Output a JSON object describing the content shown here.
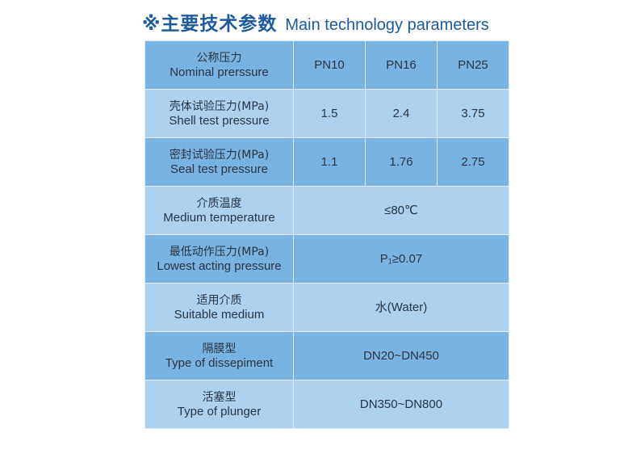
{
  "title": {
    "cn": "※主要技术参数",
    "en": "Main technology parameters"
  },
  "colors": {
    "title": "#1d5b9c",
    "row_dark": "#77b3e3",
    "row_light": "#aed1f0",
    "text": "#2b3440"
  },
  "rows": [
    {
      "cn": "公称压力",
      "en": "Nominal prerssure",
      "values": [
        "PN10",
        "PN16",
        "PN25"
      ]
    },
    {
      "cn": "壳体试验压力(MPa)",
      "en": "Shell test pressure",
      "values": [
        "1.5",
        "2.4",
        "3.75"
      ]
    },
    {
      "cn": "密封试验压力(MPa)",
      "en": "Seal test pressure",
      "values": [
        "1.1",
        "1.76",
        "2.75"
      ]
    },
    {
      "cn": "介质温度",
      "en": "Medium temperature",
      "value": "≤80℃"
    },
    {
      "cn": "最低动作压力(MPa)",
      "en": "Lowest acting pressure",
      "value": "P₁≥0.07"
    },
    {
      "cn": "适用介质",
      "en": "Suitable medium",
      "value": "水(Water)"
    },
    {
      "cn": "隔膜型",
      "en": "Type of dissepiment",
      "value": "DN20~DN450"
    },
    {
      "cn": "活塞型",
      "en": "Type of plunger",
      "value": "DN350~DN800"
    }
  ]
}
